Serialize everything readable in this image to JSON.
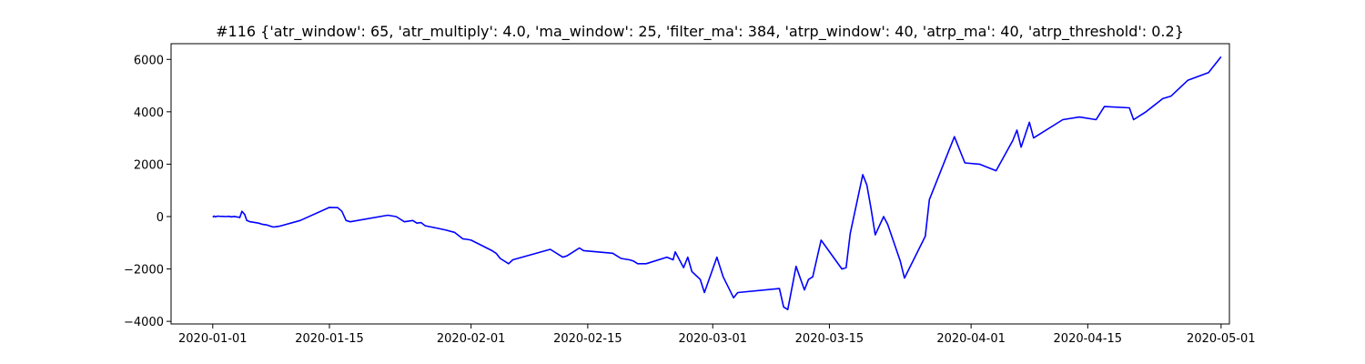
{
  "chart_data": {
    "type": "line",
    "title": "#116 {'atr_window': 65, 'atr_multiply': 4.0, 'ma_window': 25, 'filter_ma': 384, 'atrp_window': 40, 'atrp_ma': 40, 'atrp_threshold': 0.2}",
    "xlabel": "",
    "ylabel": "",
    "x_ticks": [
      "2020-01-01",
      "2020-01-15",
      "2020-02-01",
      "2020-02-15",
      "2020-03-01",
      "2020-03-15",
      "2020-04-01",
      "2020-04-15",
      "2020-05-01"
    ],
    "y_ticks": [
      -4000,
      -2000,
      0,
      2000,
      4000,
      6000
    ],
    "y_tick_labels": [
      "−4000",
      "−2000",
      "0",
      "2000",
      "4000",
      "6000"
    ],
    "xlim": [
      "2019-12-27",
      "2020-05-02"
    ],
    "ylim": [
      -4100,
      6600
    ],
    "grid": false,
    "series": [
      {
        "color": "#0000ff",
        "x": [
          "2020-01-01 00:00",
          "2020-01-01 04:00",
          "2020-01-01 08:00",
          "2020-01-01 14:00",
          "2020-01-01 20:00",
          "2020-01-02 06:00",
          "2020-01-02 14:00",
          "2020-01-02 22:00",
          "2020-01-03 06:00",
          "2020-01-03 14:00",
          "2020-01-03 20:00",
          "2020-01-04 02:00",
          "2020-01-04 06:00",
          "2020-01-04 12:00",
          "2020-01-04 20:00",
          "2020-01-05 02:00",
          "2020-01-05 12:00",
          "2020-01-06 12:00",
          "2020-01-07 00:00",
          "2020-01-07 12:00",
          "2020-01-08 06:00",
          "2020-01-08 18:00",
          "2020-01-09 00:00",
          "2020-01-11 12:00",
          "2020-01-15 00:00",
          "2020-01-16 00:00",
          "2020-01-16 12:00",
          "2020-01-17 00:00",
          "2020-01-17 12:00",
          "2020-01-22 00:00",
          "2020-01-23 00:00",
          "2020-01-24 00:00",
          "2020-01-25 00:00",
          "2020-01-25 12:00",
          "2020-01-26 00:00",
          "2020-01-26 12:00",
          "2020-01-28 00:00",
          "2020-01-29 00:00",
          "2020-01-30 00:00",
          "2020-01-31 00:00",
          "2020-01-31 12:00",
          "2020-02-01 00:00",
          "2020-02-03 12:00",
          "2020-02-04 00:00",
          "2020-02-04 12:00",
          "2020-02-05 12:00",
          "2020-02-06 00:00",
          "2020-02-10 12:00",
          "2020-02-12 00:00",
          "2020-02-12 12:00",
          "2020-02-13 00:00",
          "2020-02-14 00:00",
          "2020-02-14 12:00",
          "2020-02-18 00:00",
          "2020-02-18 12:00",
          "2020-02-19 00:00",
          "2020-02-20 00:00",
          "2020-02-20 12:00",
          "2020-02-21 00:00",
          "2020-02-22 00:00",
          "2020-02-24 12:00",
          "2020-02-25 06:00",
          "2020-02-25 12:00",
          "2020-02-26 06:00",
          "2020-02-26 12:00",
          "2020-02-27 00:00",
          "2020-02-27 12:00",
          "2020-02-28 12:00",
          "2020-02-29 00:00",
          "2020-03-01 12:00",
          "2020-03-02 06:00",
          "2020-03-03 12:00",
          "2020-03-04 00:00",
          "2020-03-09 00:00",
          "2020-03-09 12:00",
          "2020-03-10 00:00",
          "2020-03-11 00:00",
          "2020-03-12 00:00",
          "2020-03-12 12:00",
          "2020-03-13 00:00",
          "2020-03-14 00:00",
          "2020-03-16 12:00",
          "2020-03-17 00:00",
          "2020-03-17 12:00",
          "2020-03-19 00:00",
          "2020-03-19 12:00",
          "2020-03-20 00:00",
          "2020-03-20 12:00",
          "2020-03-21 12:00",
          "2020-03-22 00:00",
          "2020-03-23 12:00",
          "2020-03-24 00:00",
          "2020-03-26 12:00",
          "2020-03-27 00:00",
          "2020-03-30 00:00",
          "2020-03-31 06:00",
          "2020-04-02 00:00",
          "2020-04-04 00:00",
          "2020-04-06 00:00",
          "2020-04-06 12:00",
          "2020-04-07 00:00",
          "2020-04-08 00:00",
          "2020-04-08 12:00",
          "2020-04-09 00:00",
          "2020-04-12 00:00",
          "2020-04-14 00:00",
          "2020-04-16 00:00",
          "2020-04-17 00:00",
          "2020-04-20 00:00",
          "2020-04-20 12:00",
          "2020-04-22 00:00",
          "2020-04-24 00:00",
          "2020-04-25 00:00",
          "2020-04-27 00:00",
          "2020-04-29 12:00",
          "2020-04-30 00:00",
          "2020-04-30 12:00",
          "2020-05-01 00:00"
        ],
        "y": [
          -20,
          20,
          -10,
          15,
          10,
          5,
          0,
          10,
          -10,
          5,
          -10,
          -20,
          -40,
          200,
          80,
          -150,
          -200,
          -250,
          -300,
          -320,
          -400,
          -380,
          -370,
          -150,
          350,
          340,
          200,
          -150,
          -200,
          50,
          0,
          -200,
          -150,
          -250,
          -230,
          -350,
          -450,
          -520,
          -600,
          -850,
          -870,
          -900,
          -1300,
          -1400,
          -1600,
          -1800,
          -1650,
          -1250,
          -1550,
          -1500,
          -1400,
          -1200,
          -1300,
          -1400,
          -1500,
          -1600,
          -1650,
          -1700,
          -1800,
          -1800,
          -1550,
          -1650,
          -1350,
          -1800,
          -1950,
          -1550,
          -2100,
          -2400,
          -2900,
          -1550,
          -2300,
          -3100,
          -2900,
          -2750,
          -3450,
          -3550,
          -1900,
          -2800,
          -2400,
          -2300,
          -900,
          -2000,
          -1950,
          -650,
          1600,
          1200,
          300,
          -700,
          0,
          -300,
          -1700,
          -2350,
          -750,
          650,
          3050,
          2050,
          2000,
          1750,
          2900,
          3300,
          2650,
          3600,
          3000,
          3100,
          3700,
          3800,
          3700,
          4200,
          4150,
          3700,
          4000,
          4500,
          4600,
          5200,
          5500,
          5700,
          5900,
          6100
        ]
      }
    ]
  }
}
